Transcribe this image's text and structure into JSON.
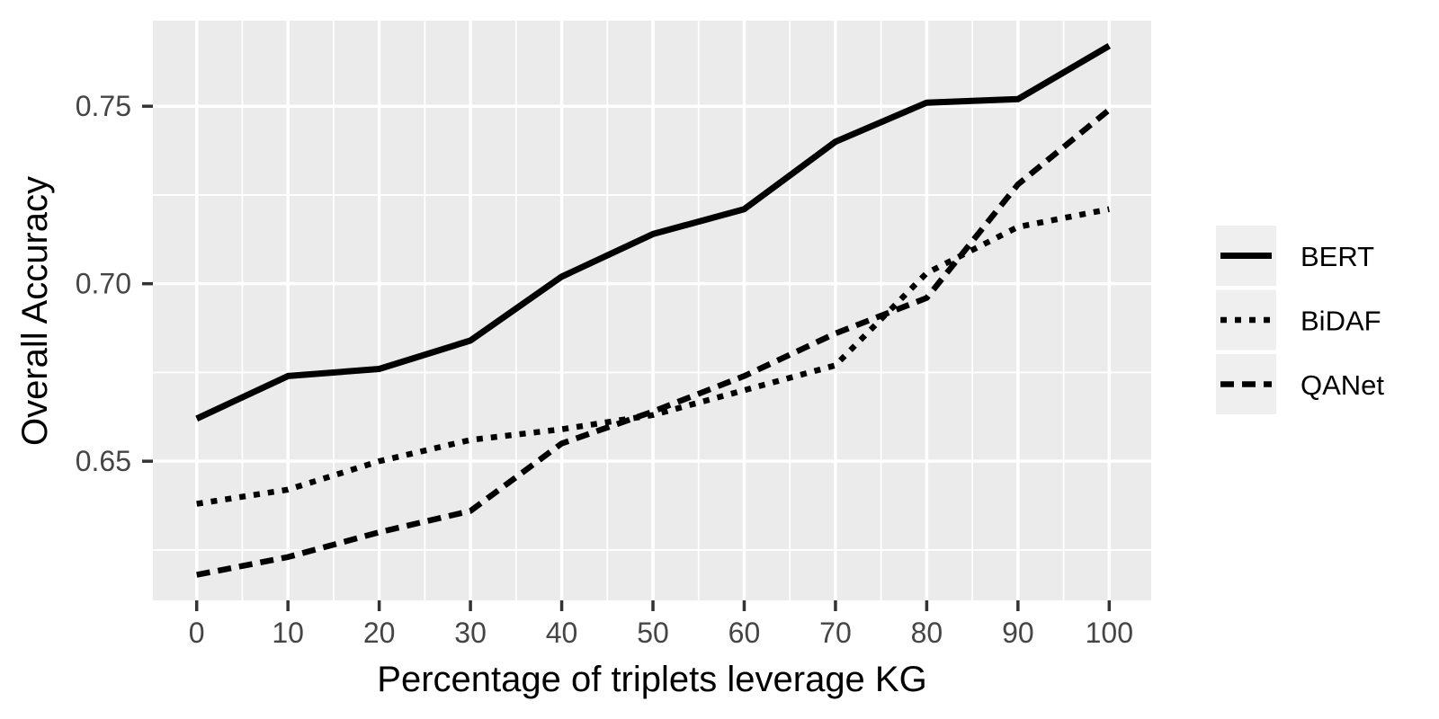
{
  "chart_data": {
    "type": "line",
    "title": "",
    "xlabel": "Percentage of triplets leverage KG",
    "ylabel": "Overall Accuracy",
    "x": [
      0,
      10,
      20,
      30,
      40,
      50,
      60,
      70,
      80,
      90,
      100
    ],
    "series": [
      {
        "name": "BERT",
        "linetype": "solid",
        "values": [
          0.662,
          0.674,
          0.676,
          0.684,
          0.702,
          0.714,
          0.721,
          0.74,
          0.751,
          0.752,
          0.767
        ]
      },
      {
        "name": "BiDAF",
        "linetype": "dotted",
        "values": [
          0.638,
          0.642,
          0.65,
          0.656,
          0.659,
          0.663,
          0.67,
          0.677,
          0.703,
          0.716,
          0.721
        ]
      },
      {
        "name": "QANet",
        "linetype": "dashed",
        "values": [
          0.618,
          0.623,
          0.63,
          0.636,
          0.655,
          0.664,
          0.674,
          0.686,
          0.696,
          0.728,
          0.749
        ]
      }
    ],
    "x_ticks": [
      0,
      10,
      20,
      30,
      40,
      50,
      60,
      70,
      80,
      90,
      100
    ],
    "x_tick_labels": [
      "0",
      "10",
      "20",
      "30",
      "40",
      "50",
      "60",
      "70",
      "80",
      "90",
      "100"
    ],
    "y_ticks": [
      0.65,
      0.7,
      0.75
    ],
    "y_tick_labels": [
      "0.65",
      "0.70",
      "0.75"
    ],
    "xlim": [
      -4.8,
      104.6
    ],
    "ylim": [
      0.6108,
      0.7741
    ],
    "grid": {
      "major": true,
      "minor": true
    },
    "legend_position": "right",
    "line_color": "#000000",
    "panel_bg": "#EBEBEB",
    "grid_color": "#FFFFFF",
    "tick_color": "#333333",
    "tick_label_color": "#454545",
    "legend_key_bg": "#EFEFEF"
  }
}
